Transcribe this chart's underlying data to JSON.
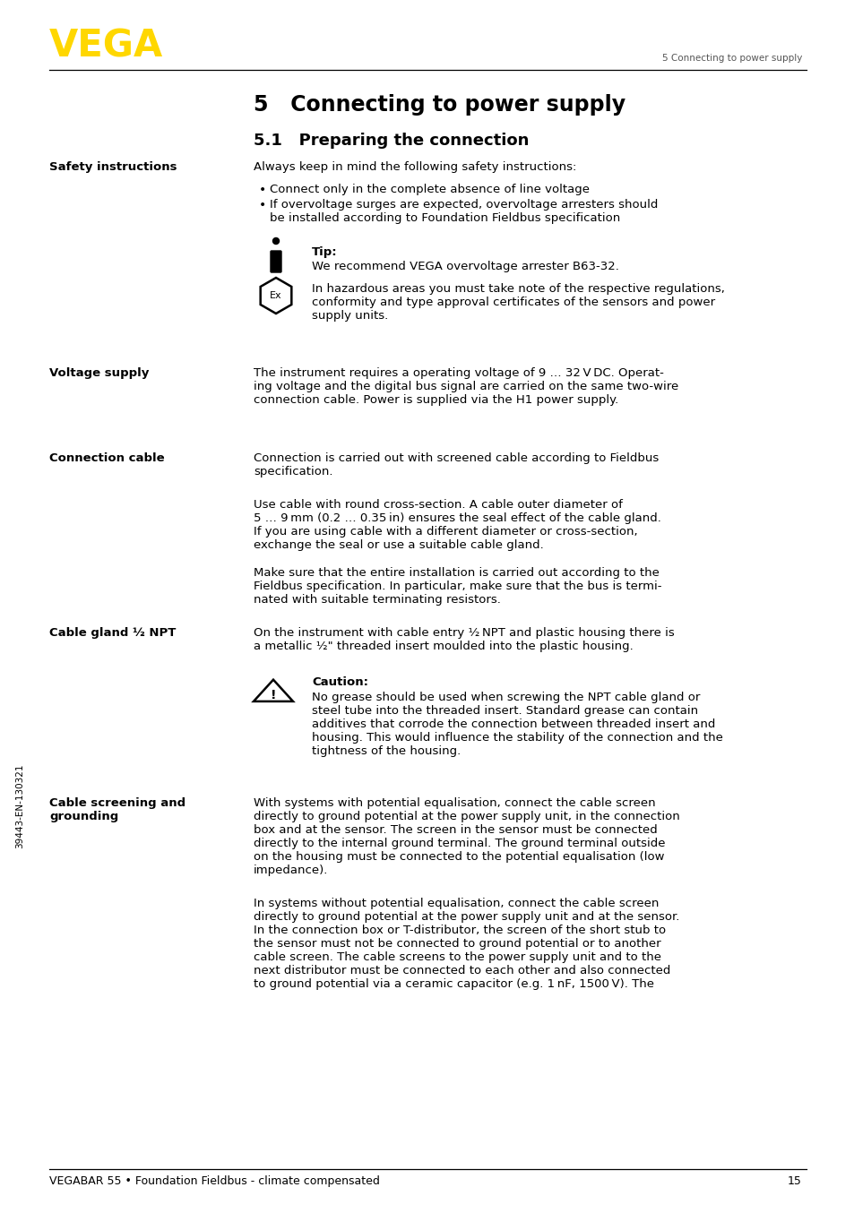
{
  "bg_color": "#ffffff",
  "logo_text": "VEGA",
  "logo_color": "#FFD700",
  "header_right_text": "5 Connecting to power supply",
  "footer_left_text": "VEGABAR 55 • Foundation Fieldbus - climate compensated",
  "footer_right_text": "15",
  "sidebar_text": "39443-EN-130321",
  "chapter_title": "5   Connecting to power supply",
  "section_title": "5.1   Preparing the connection",
  "tip_bold": "Tip:",
  "tip_text": "We recommend VEGA overvoltage arrester B63-32.",
  "caution_bold": "Caution:",
  "font_family": "DejaVu Sans"
}
